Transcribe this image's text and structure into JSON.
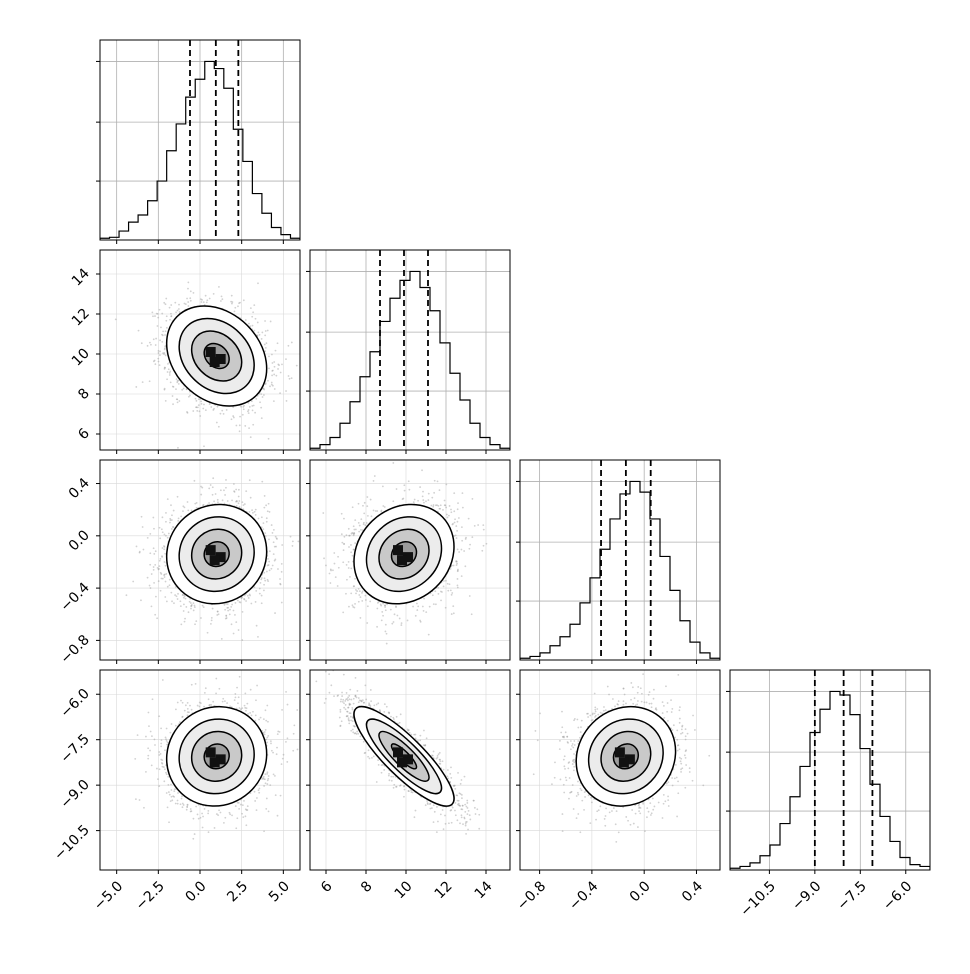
{
  "chart_data": {
    "type": "corner-plot",
    "grid": true,
    "contour_levels": [
      0.5,
      1.0,
      1.5,
      2.0
    ],
    "quantile_lines": [
      0.16,
      0.5,
      0.84
    ],
    "parameters": [
      {
        "range": [
          -6.0,
          6.0
        ],
        "ticks": [
          "−5.0",
          "−2.5",
          "0.0",
          "2.5",
          "5.0"
        ],
        "tick_values": [
          -5.0,
          -2.5,
          0.0,
          2.5,
          5.0
        ],
        "mean": 1.0,
        "std": 1.5,
        "quantiles": [
          -0.6,
          0.95,
          2.3
        ],
        "hist": [
          0.01,
          0.015,
          0.05,
          0.1,
          0.14,
          0.22,
          0.33,
          0.5,
          0.65,
          0.8,
          0.9,
          1.0,
          0.96,
          0.85,
          0.62,
          0.44,
          0.26,
          0.15,
          0.07,
          0.03,
          0.01
        ]
      },
      {
        "range": [
          5.2,
          15.2
        ],
        "ticks": [
          "6",
          "8",
          "10",
          "12",
          "14"
        ],
        "tick_values": [
          6,
          8,
          10,
          12,
          14
        ],
        "mean": 9.9,
        "std": 1.25,
        "quantiles": [
          8.7,
          9.9,
          11.1
        ],
        "hist": [
          0.01,
          0.03,
          0.07,
          0.15,
          0.27,
          0.41,
          0.55,
          0.72,
          0.85,
          0.95,
          1.0,
          0.91,
          0.78,
          0.6,
          0.43,
          0.28,
          0.15,
          0.07,
          0.03,
          0.01
        ]
      },
      {
        "range": [
          -0.95,
          0.58
        ],
        "ticks": [
          "−0.8",
          "−0.4",
          "0.0",
          "0.4"
        ],
        "tick_values": [
          -0.8,
          -0.4,
          0.0,
          0.4
        ],
        "mean": -0.14,
        "std": 0.19,
        "quantiles": [
          -0.33,
          -0.14,
          0.05
        ],
        "hist": [
          0.01,
          0.02,
          0.04,
          0.08,
          0.13,
          0.2,
          0.32,
          0.46,
          0.62,
          0.79,
          0.93,
          1.0,
          0.94,
          0.79,
          0.58,
          0.39,
          0.22,
          0.1,
          0.04,
          0.01
        ]
      },
      {
        "range": [
          -11.8,
          -5.2
        ],
        "ticks": [
          "−10.5",
          "−9.0",
          "−7.5",
          "−6.0"
        ],
        "tick_values": [
          -10.5,
          -9.0,
          -7.5,
          -6.0
        ],
        "mean": -8.05,
        "std": 0.82,
        "quantiles": [
          -9.0,
          -8.05,
          -7.1
        ],
        "hist": [
          0.01,
          0.02,
          0.04,
          0.08,
          0.14,
          0.26,
          0.41,
          0.58,
          0.77,
          0.9,
          1.0,
          0.98,
          0.87,
          0.68,
          0.48,
          0.3,
          0.16,
          0.07,
          0.03,
          0.02
        ]
      }
    ],
    "correlations": {
      "1-0": -0.25,
      "2-0": 0.05,
      "2-1": 0.15,
      "3-0": 0.05,
      "3-1": -0.85,
      "3-2": 0.1
    }
  }
}
